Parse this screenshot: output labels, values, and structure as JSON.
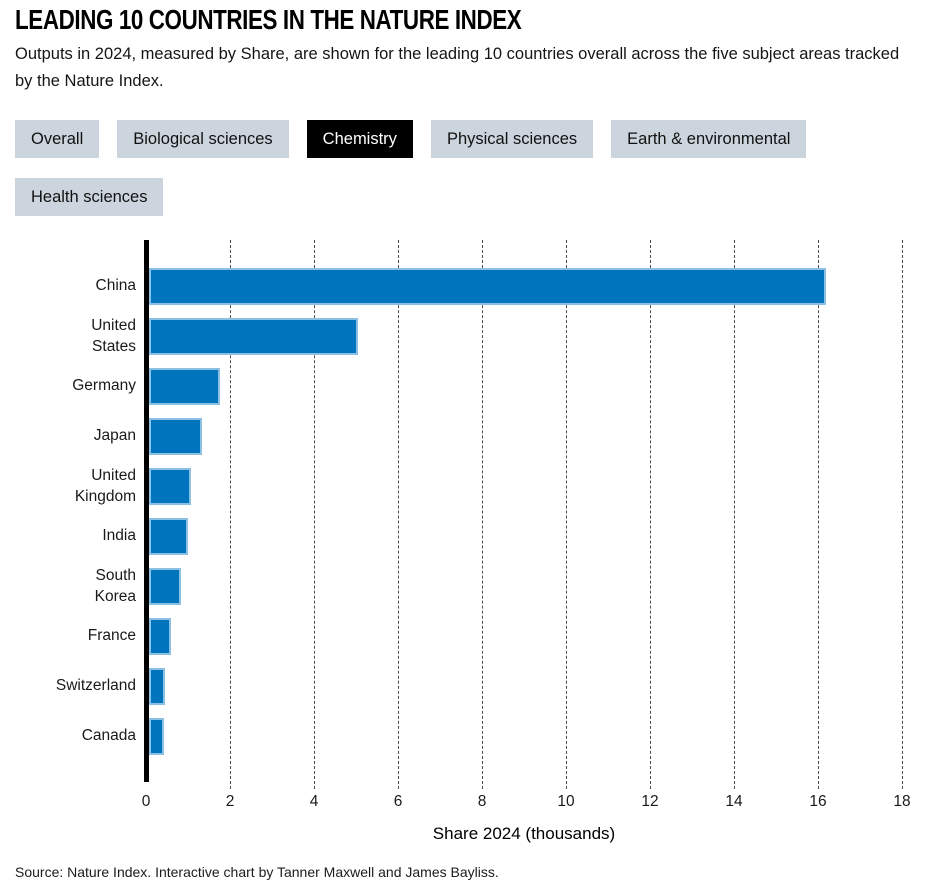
{
  "header": {
    "title": "LEADING 10 COUNTRIES IN THE NATURE INDEX",
    "subtitle": "Outputs in 2024, measured by Share, are shown for the leading 10 countries overall across the five subject areas tracked by the Nature Index."
  },
  "tabs": [
    {
      "label": "Overall",
      "active": false
    },
    {
      "label": "Biological sciences",
      "active": false
    },
    {
      "label": "Chemistry",
      "active": true
    },
    {
      "label": "Physical sciences",
      "active": false
    },
    {
      "label": "Earth & environmental",
      "active": false
    },
    {
      "label": "Health sciences",
      "active": false
    }
  ],
  "chart_data": {
    "type": "bar",
    "orientation": "horizontal",
    "categories": [
      "China",
      "United States",
      "Germany",
      "Japan",
      "United Kingdom",
      "India",
      "South Korea",
      "France",
      "Switzerland",
      "Canada"
    ],
    "wrapped_labels": [
      "China",
      "United\nStates",
      "Germany",
      "Japan",
      "United\nKingdom",
      "India",
      "South\nKorea",
      "France",
      "Switzerland",
      "Canada"
    ],
    "values": [
      16.2,
      5.05,
      1.76,
      1.33,
      1.07,
      1.0,
      0.83,
      0.6,
      0.45,
      0.43
    ],
    "title": "",
    "xlabel": "Share 2024 (thousands)",
    "ylabel": "",
    "xlim": [
      0,
      18
    ],
    "xticks": [
      0,
      2,
      4,
      6,
      8,
      10,
      12,
      14,
      16,
      18
    ],
    "grid": "vertical-dashed",
    "legend": "none",
    "bar_color": "#0074bd",
    "bar_border_color": "#8cc0e2",
    "gridline_color": "#4d4d4d",
    "axis_color": "#000000"
  },
  "footer": {
    "source": "Source: Nature Index. Interactive chart by Tanner Maxwell and James Bayliss."
  }
}
